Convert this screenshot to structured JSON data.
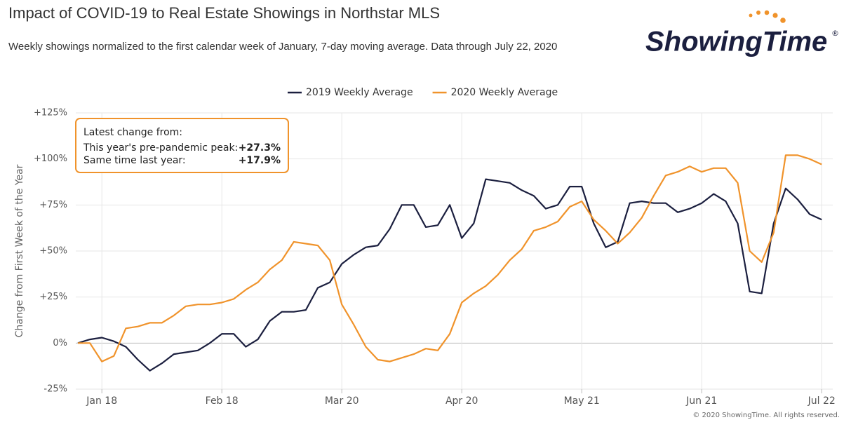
{
  "chart_data": {
    "type": "line",
    "title": "Impact of COVID-19 to Real Estate Showings in Northstar MLS",
    "subtitle": "Weekly showings normalized to the first calendar week of January, 7-day moving average. Data through July 22, 2020",
    "y_axis_label": "Change from First Week of the Year",
    "logo": "ShowingTime",
    "logo_mark": "®",
    "copyright": "© 2020 ShowingTime. All rights reserved.",
    "annotation": {
      "title": "Latest change from:",
      "rows": [
        {
          "label": "This year's pre-pandemic peak:",
          "value": "+27.3%"
        },
        {
          "label": "Same time last year:",
          "value": "+17.9%"
        }
      ]
    },
    "categories": [
      null,
      null,
      "Jan 18",
      null,
      null,
      null,
      null,
      null,
      null,
      null,
      null,
      null,
      "Feb 18",
      null,
      null,
      null,
      null,
      null,
      null,
      null,
      null,
      null,
      "Mar 20",
      null,
      null,
      null,
      null,
      null,
      null,
      null,
      null,
      null,
      "Apr 20",
      null,
      null,
      null,
      null,
      null,
      null,
      null,
      null,
      null,
      "May 21",
      null,
      null,
      null,
      null,
      null,
      null,
      null,
      null,
      null,
      "Jun 21",
      null,
      null,
      null,
      null,
      null,
      null,
      null,
      null,
      null,
      "Jul 22"
    ],
    "series": [
      {
        "name": "2019 Weekly Average",
        "color": "#1b1f3f",
        "values": [
          0,
          2,
          3,
          1,
          -2,
          -9,
          -15,
          -11,
          -6,
          -5,
          -4,
          0,
          5,
          5,
          -2,
          2,
          12,
          17,
          17,
          18,
          30,
          33,
          43,
          48,
          52,
          53,
          62,
          75,
          75,
          63,
          64,
          75,
          57,
          65,
          89,
          88,
          87,
          83,
          80,
          73,
          75,
          85,
          85,
          65,
          52,
          55,
          76,
          77,
          76,
          76,
          71,
          73,
          76,
          81,
          77,
          65,
          28,
          27,
          65,
          84,
          78,
          70,
          67
        ]
      },
      {
        "name": "2020 Weekly Average",
        "color": "#f0932b",
        "values": [
          0,
          0,
          -10,
          -7,
          8,
          9,
          11,
          11,
          15,
          20,
          21,
          21,
          22,
          24,
          29,
          33,
          40,
          45,
          55,
          54,
          53,
          45,
          21,
          10,
          -2,
          -9,
          -10,
          -8,
          -6,
          -3,
          -4,
          5,
          22,
          27,
          31,
          37,
          45,
          51,
          61,
          63,
          66,
          74,
          77,
          67,
          61,
          54,
          60,
          68,
          80,
          91,
          93,
          96,
          93,
          95,
          95,
          87,
          50,
          44,
          60,
          102,
          102,
          100,
          97
        ]
      }
    ],
    "ylim": [
      -25,
      125
    ],
    "yticks": [
      {
        "value": -25,
        "label": "-25%"
      },
      {
        "value": 0,
        "label": "0%"
      },
      {
        "value": 25,
        "label": "+25%"
      },
      {
        "value": 50,
        "label": "+50%"
      },
      {
        "value": 75,
        "label": "+75%"
      },
      {
        "value": 100,
        "label": "+100%"
      },
      {
        "value": 125,
        "label": "+125%"
      }
    ],
    "grid": true,
    "legend": "top"
  }
}
